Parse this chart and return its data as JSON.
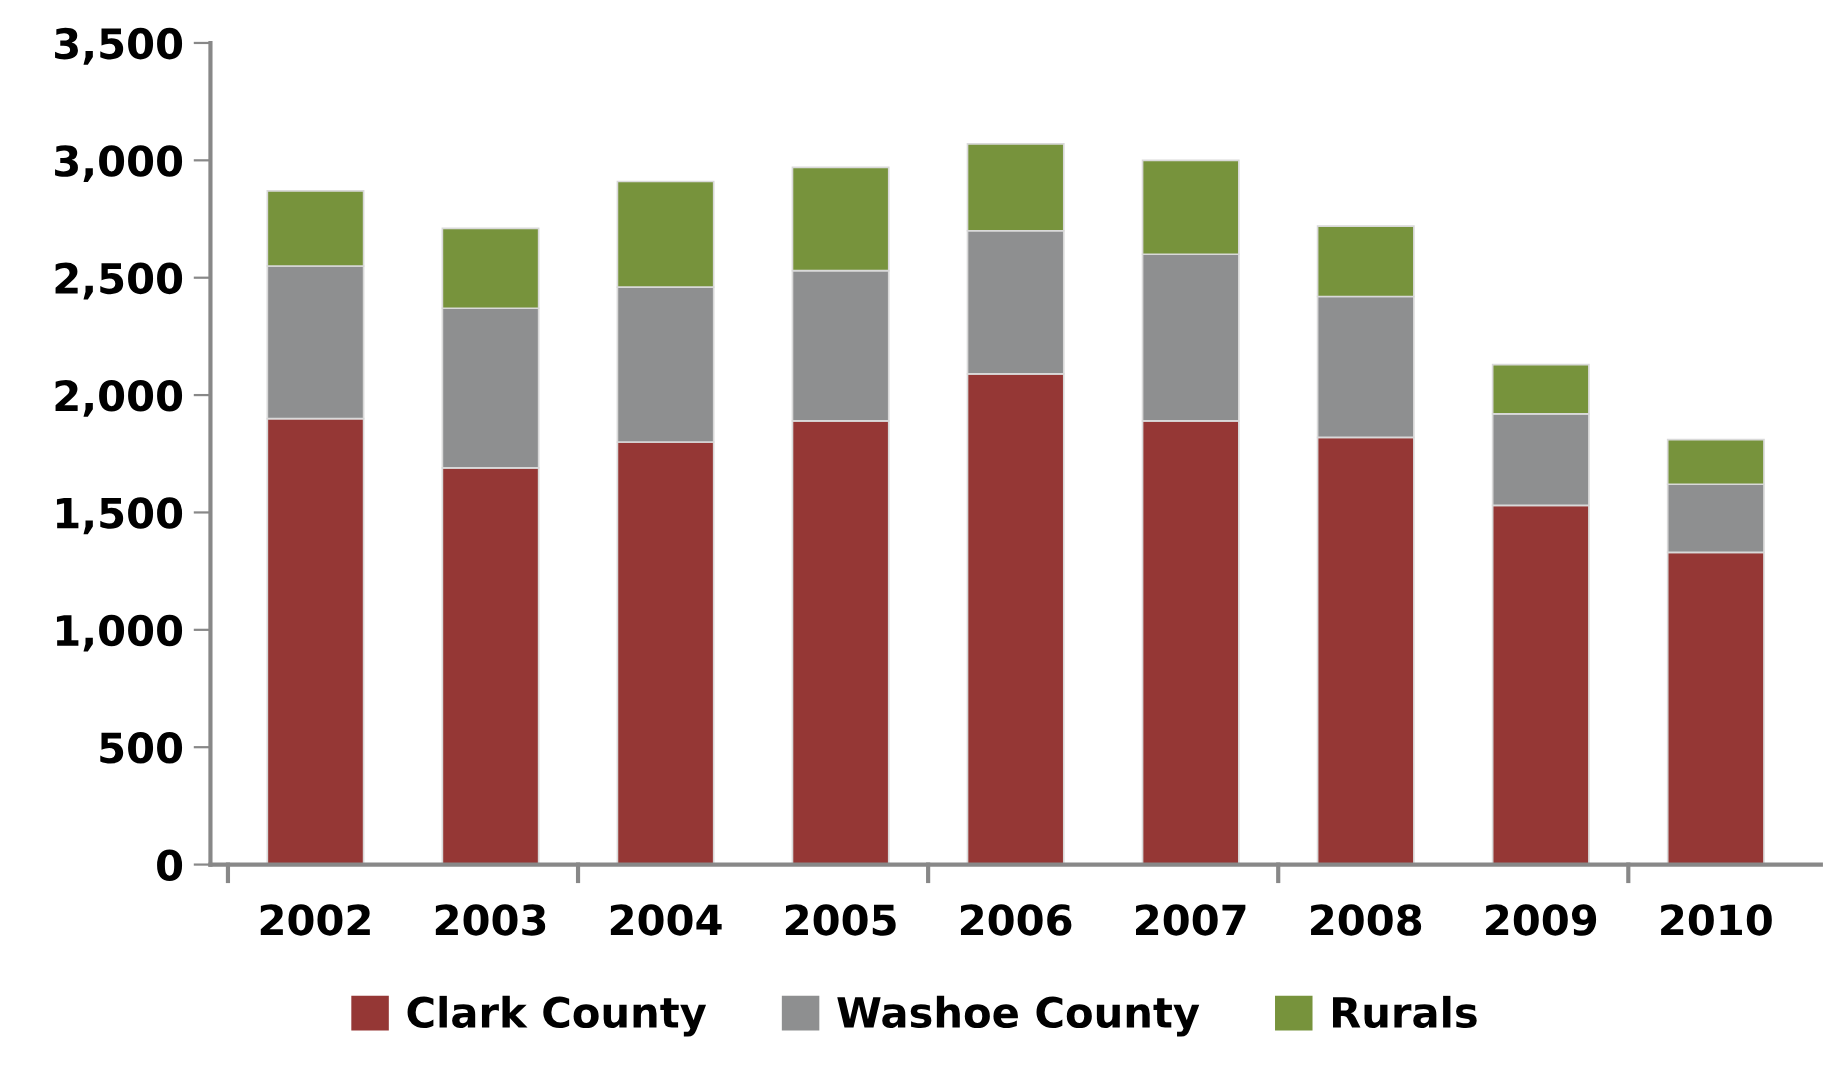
{
  "chart_data": {
    "type": "bar",
    "stacked": true,
    "categories": [
      "2002",
      "2003",
      "2004",
      "2005",
      "2006",
      "2007",
      "2008",
      "2009",
      "2010"
    ],
    "series": [
      {
        "name": "Clark County",
        "color": "#953735",
        "values": [
          1900,
          1690,
          1800,
          1890,
          2090,
          1890,
          1820,
          1530,
          1330
        ]
      },
      {
        "name": "Washoe County",
        "color": "#8e8f90",
        "values": [
          650,
          680,
          660,
          640,
          610,
          710,
          600,
          390,
          290
        ]
      },
      {
        "name": "Rurals",
        "color": "#77933c",
        "values": [
          320,
          340,
          450,
          440,
          370,
          400,
          300,
          210,
          190
        ]
      }
    ],
    "ylim": [
      0,
      3500
    ],
    "yticks": [
      {
        "value": 0,
        "label": "0"
      },
      {
        "value": 500,
        "label": "500"
      },
      {
        "value": 1000,
        "label": "1,000"
      },
      {
        "value": 1500,
        "label": "1,500"
      },
      {
        "value": 2000,
        "label": "2,000"
      },
      {
        "value": 2500,
        "label": "2,500"
      },
      {
        "value": 3000,
        "label": "3,000"
      },
      {
        "value": 3500,
        "label": "3,500"
      }
    ],
    "grid": false,
    "legend": "bottom"
  }
}
